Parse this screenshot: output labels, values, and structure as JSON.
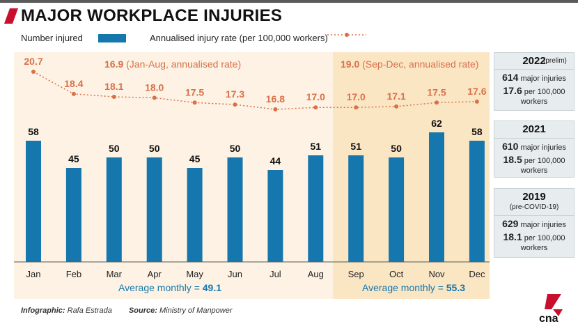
{
  "title": "MAJOR WORKPLACE INJURIES",
  "legend": {
    "bars_label": "Number injured",
    "line_label": "Annualised injury rate (per 100,000 workers)"
  },
  "colors": {
    "bar": "#1577ad",
    "line": "#d9704a",
    "panel_left": "#fdf2e3",
    "panel_right": "#fbe6c4",
    "title_mark": "#c8102e"
  },
  "annotations": {
    "left_rate": "16.9",
    "left_rate_text": "(Jan-Aug, annualised rate)",
    "right_rate": "19.0",
    "right_rate_text": "(Sep-Dec, annualised rate)",
    "left_avg_label": "Average monthly = ",
    "left_avg_value": "49.1",
    "right_avg_label": "Average monthly = ",
    "right_avg_value": "55.3"
  },
  "chart_data": {
    "type": "bar",
    "categories": [
      "Jan",
      "Feb",
      "Mar",
      "Apr",
      "May",
      "Jun",
      "Jul",
      "Aug",
      "Sep",
      "Oct",
      "Nov",
      "Dec"
    ],
    "series": [
      {
        "name": "Number injured",
        "values": [
          58,
          45,
          50,
          50,
          45,
          50,
          44,
          51,
          51,
          50,
          62,
          58
        ]
      },
      {
        "name": "Annualised injury rate (per 100,000 workers)",
        "values": [
          20.7,
          18.4,
          18.1,
          18.0,
          17.5,
          17.3,
          16.8,
          17.0,
          17.0,
          17.1,
          17.5,
          17.6
        ]
      }
    ],
    "bar_labels": [
      "58",
      "45",
      "50",
      "50",
      "45",
      "50",
      "44",
      "51",
      "51",
      "50",
      "62",
      "58"
    ],
    "rate_labels": [
      "20.7",
      "18.4",
      "18.1",
      "18.0",
      "17.5",
      "17.3",
      "16.8",
      "17.0",
      "17.0",
      "17.1",
      "17.5",
      "17.6"
    ]
  },
  "panels": [
    {
      "year": "2022",
      "sub": "(prelim)",
      "injuries_num": "614",
      "injuries_text": "major injuries",
      "rate_num": "17.6",
      "rate_text": "per 100,000",
      "rate_text2": "workers"
    },
    {
      "year": "2021",
      "sub": "",
      "injuries_num": "610",
      "injuries_text": "major injuries",
      "rate_num": "18.5",
      "rate_text": "per 100,000",
      "rate_text2": "workers"
    },
    {
      "year": "2019",
      "sub": "(pre-COVID-19)",
      "injuries_num": "629",
      "injuries_text": "major injuries",
      "rate_num": "18.1",
      "rate_text": "per 100,000",
      "rate_text2": "workers"
    }
  ],
  "footer": {
    "infographic_label": "Infographic:",
    "infographic_value": "Rafa Estrada",
    "source_label": "Source:",
    "source_value": "Ministry of Manpower"
  },
  "logo_text": "cna"
}
